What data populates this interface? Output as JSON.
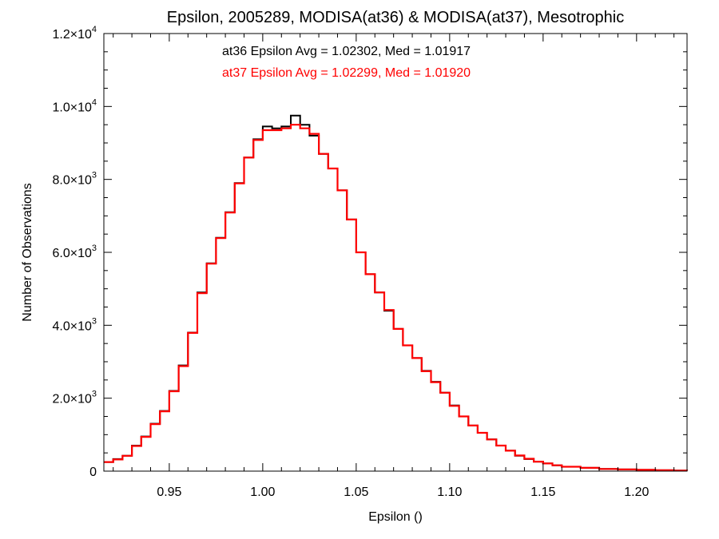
{
  "chart_data": {
    "type": "line",
    "title": "Epsilon, 2005289, MODISA(at36) & MODISA(at37), Mesotrophic",
    "xlabel": "Epsilon ()",
    "ylabel": "Number of Observations",
    "xlim": [
      0.915,
      1.227
    ],
    "ylim": [
      0,
      12000
    ],
    "grid": false,
    "x_ticks": [
      0.95,
      1.0,
      1.05,
      1.1,
      1.15,
      1.2
    ],
    "x_tick_labels": [
      "0.95",
      "1.00",
      "1.05",
      "1.10",
      "1.15",
      "1.20"
    ],
    "y_ticks": [
      {
        "value": 0,
        "mantissa": "0",
        "exponent": ""
      },
      {
        "value": 2000,
        "mantissa": "2.0×10",
        "exponent": "3"
      },
      {
        "value": 4000,
        "mantissa": "4.0×10",
        "exponent": "3"
      },
      {
        "value": 6000,
        "mantissa": "6.0×10",
        "exponent": "3"
      },
      {
        "value": 8000,
        "mantissa": "8.0×10",
        "exponent": "3"
      },
      {
        "value": 10000,
        "mantissa": "1.0×10",
        "exponent": "4"
      },
      {
        "value": 12000,
        "mantissa": "1.2×10",
        "exponent": "4"
      }
    ],
    "annotations": [
      {
        "text": "at36 Epsilon Avg = 1.02302, Med = 1.01917",
        "color": "#000000"
      },
      {
        "text": "at37 Epsilon Avg = 1.02299, Med = 1.01920",
        "color": "#ff0000"
      }
    ],
    "series": [
      {
        "color": "#000000",
        "style": "step",
        "x": [
          0.915,
          0.92,
          0.925,
          0.93,
          0.935,
          0.94,
          0.945,
          0.95,
          0.955,
          0.96,
          0.965,
          0.97,
          0.975,
          0.98,
          0.985,
          0.99,
          0.995,
          1.0,
          1.005,
          1.01,
          1.015,
          1.02,
          1.025,
          1.03,
          1.035,
          1.04,
          1.045,
          1.05,
          1.055,
          1.06,
          1.065,
          1.07,
          1.075,
          1.08,
          1.085,
          1.09,
          1.095,
          1.1,
          1.105,
          1.11,
          1.115,
          1.12,
          1.125,
          1.13,
          1.135,
          1.14,
          1.145,
          1.15,
          1.155,
          1.16,
          1.17,
          1.18,
          1.19,
          1.2,
          1.21,
          1.22,
          1.227
        ],
        "y": [
          250,
          330,
          420,
          700,
          950,
          1300,
          1650,
          2200,
          2900,
          3800,
          4900,
          5700,
          6400,
          7100,
          7900,
          8600,
          9100,
          9450,
          9400,
          9450,
          9750,
          9500,
          9200,
          8700,
          8300,
          7700,
          6900,
          6000,
          5400,
          4900,
          4400,
          3900,
          3450,
          3100,
          2750,
          2450,
          2150,
          1800,
          1500,
          1250,
          1050,
          870,
          700,
          560,
          420,
          330,
          260,
          210,
          160,
          120,
          90,
          60,
          45,
          35,
          25,
          15,
          10
        ]
      },
      {
        "color": "#ff0000",
        "style": "step",
        "x": [
          0.915,
          0.92,
          0.925,
          0.93,
          0.935,
          0.94,
          0.945,
          0.95,
          0.955,
          0.96,
          0.965,
          0.97,
          0.975,
          0.98,
          0.985,
          0.99,
          0.995,
          1.0,
          1.005,
          1.01,
          1.015,
          1.02,
          1.025,
          1.03,
          1.035,
          1.04,
          1.045,
          1.05,
          1.055,
          1.06,
          1.065,
          1.07,
          1.075,
          1.08,
          1.085,
          1.09,
          1.095,
          1.1,
          1.105,
          1.11,
          1.115,
          1.12,
          1.125,
          1.13,
          1.135,
          1.14,
          1.145,
          1.15,
          1.155,
          1.16,
          1.17,
          1.18,
          1.19,
          1.2,
          1.21,
          1.22,
          1.227
        ],
        "y": [
          250,
          320,
          420,
          690,
          940,
          1290,
          1640,
          2190,
          2880,
          3790,
          4880,
          5690,
          6390,
          7090,
          7890,
          8600,
          9080,
          9350,
          9350,
          9400,
          9500,
          9400,
          9250,
          8700,
          8300,
          7700,
          6900,
          6000,
          5400,
          4900,
          4420,
          3900,
          3450,
          3100,
          2740,
          2440,
          2150,
          1790,
          1500,
          1250,
          1050,
          870,
          700,
          560,
          430,
          340,
          260,
          210,
          160,
          120,
          90,
          60,
          45,
          35,
          25,
          15,
          10
        ]
      }
    ]
  }
}
